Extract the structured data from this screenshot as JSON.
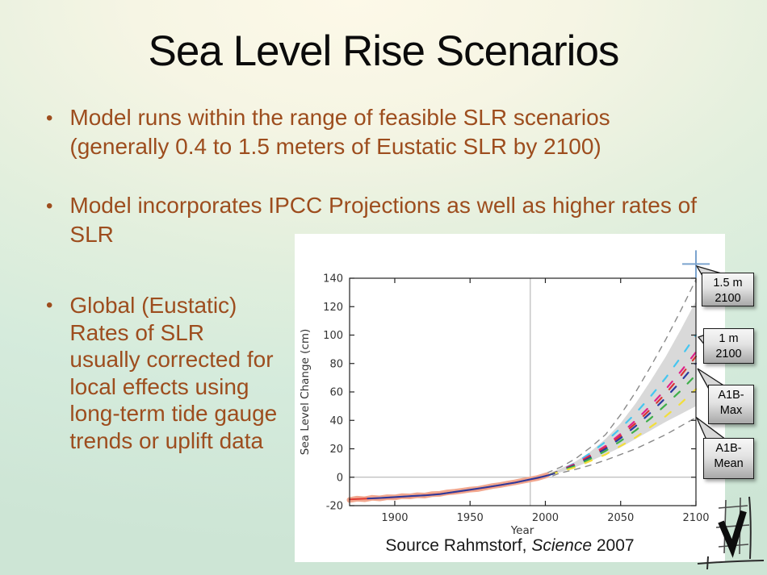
{
  "slide": {
    "title": "Sea Level Rise Scenarios",
    "bullet_char": "•",
    "bullets": [
      "Model runs within the range of feasible SLR scenarios (generally 0.4 to 1.5 meters of Eustatic SLR by 2100)",
      "Model incorporates IPCC Projections as well as higher rates of SLR",
      "Global (Eustatic) Rates of SLR usually corrected for local effects using long-term tide gauge trends or uplift data"
    ]
  },
  "figure": {
    "source": {
      "prefix": "Source Rahmstorf, ",
      "journal": "Science",
      "suffix": " 2007"
    },
    "callouts": [
      {
        "line1": "1.5 m",
        "line2": "2100"
      },
      {
        "line1": "1 m",
        "line2": "2100"
      },
      {
        "line1": "A1B-",
        "line2": "Max"
      },
      {
        "line1": "A1B-",
        "line2": "Mean"
      }
    ]
  },
  "colors": {
    "bullet_text": "#9D4D1E",
    "slide_bg_center": "#FCF8E6",
    "slide_bg_edge": "#CEE6D6",
    "callout_fill": "#D8D8D8",
    "marker_cross": "#7BA3CE"
  },
  "chart_data": {
    "type": "line",
    "title": "",
    "xlabel": "Year",
    "ylabel": "Sea Level Change (cm)",
    "xlim": [
      1870,
      2100
    ],
    "ylim": [
      -20,
      140
    ],
    "x_ticks": [
      1900,
      1950,
      2000,
      2050,
      2100
    ],
    "y_ticks": [
      -20,
      0,
      20,
      40,
      60,
      80,
      100,
      120,
      140
    ],
    "legend": "none",
    "grid": "reference lines only",
    "ref_lines": {
      "x": 1990,
      "y": 0,
      "color": "#ABABAB"
    },
    "series": [
      {
        "name": "projection-uncertainty-band",
        "kind": "area",
        "color": "#D9D9D9",
        "x": [
          2001,
          2010,
          2020,
          2030,
          2040,
          2050,
          2060,
          2070,
          2080,
          2090,
          2100
        ],
        "upper": [
          2,
          6,
          11,
          18,
          27,
          38,
          52,
          68,
          85,
          104,
          124
        ],
        "lower": [
          1,
          3.5,
          7,
          11.5,
          16,
          21,
          27,
          33,
          39,
          44.5,
          50
        ]
      },
      {
        "name": "outer-upper-bound",
        "kind": "line",
        "color": "#8A8A8A",
        "width": 1.4,
        "dash": "7 7",
        "x": [
          2001,
          2010,
          2020,
          2030,
          2040,
          2050,
          2060,
          2070,
          2080,
          2090,
          2100
        ],
        "values": [
          3,
          7,
          13,
          21,
          30,
          44,
          60,
          78,
          97,
          117.5,
          139
        ]
      },
      {
        "name": "outer-lower-bound",
        "kind": "line",
        "color": "#8A8A8A",
        "width": 1.4,
        "dash": "7 7",
        "x": [
          2005,
          2010,
          2020,
          2030,
          2040,
          2050,
          2060,
          2070,
          2080,
          2090,
          2100
        ],
        "values": [
          1,
          3,
          5.5,
          8.5,
          12,
          16,
          20,
          25,
          30,
          36,
          42
        ]
      },
      {
        "name": "scenario-1m-cyan",
        "kind": "line",
        "color": "#45C6F0",
        "width": 2.2,
        "dash": "9 14",
        "x": [
          2003,
          2010,
          2020,
          2030,
          2040,
          2050,
          2060,
          2070,
          2080,
          2090,
          2100
        ],
        "values": [
          1.8,
          5,
          10,
          17,
          25,
          34.5,
          45,
          57,
          70,
          84.5,
          100
        ]
      },
      {
        "name": "scenario-magenta",
        "kind": "line",
        "color": "#E0218A",
        "width": 2.2,
        "dash": "9 14",
        "x": [
          2003,
          2010,
          2020,
          2030,
          2040,
          2050,
          2060,
          2070,
          2080,
          2090,
          2100
        ],
        "values": [
          1.8,
          4.8,
          9.5,
          15.5,
          22,
          30.5,
          40,
          50.5,
          62,
          74.5,
          88
        ]
      },
      {
        "name": "scenario-red",
        "kind": "line",
        "color": "#D93434",
        "width": 2.2,
        "dash": "9 14",
        "x": [
          2003,
          2010,
          2020,
          2030,
          2040,
          2050,
          2060,
          2070,
          2080,
          2090,
          2100
        ],
        "values": [
          1.8,
          4.6,
          9,
          15,
          21,
          29,
          38,
          48,
          59,
          71.5,
          85
        ]
      },
      {
        "name": "scenario-navy",
        "kind": "line",
        "color": "#2B3A9E",
        "width": 2.2,
        "dash": "9 14",
        "x": [
          2003,
          2010,
          2020,
          2030,
          2040,
          2050,
          2060,
          2070,
          2080,
          2090,
          2100
        ],
        "values": [
          1.8,
          4.5,
          8.5,
          14,
          20,
          27.5,
          36,
          45.5,
          56,
          67.5,
          80
        ]
      },
      {
        "name": "scenario-green",
        "kind": "line",
        "color": "#3DAE49",
        "width": 2.2,
        "dash": "9 14",
        "x": [
          2003,
          2010,
          2020,
          2030,
          2040,
          2050,
          2060,
          2070,
          2080,
          2090,
          2100
        ],
        "values": [
          1.8,
          4.3,
          8,
          13,
          18.5,
          25.5,
          33,
          41.5,
          51,
          61,
          72
        ]
      },
      {
        "name": "scenario-yellow",
        "kind": "line",
        "color": "#F2DE3A",
        "width": 2.2,
        "dash": "9 14",
        "x": [
          2003,
          2010,
          2020,
          2030,
          2040,
          2050,
          2060,
          2070,
          2080,
          2090,
          2100
        ],
        "values": [
          1.8,
          4,
          7,
          11.5,
          16,
          22,
          28,
          35.5,
          43,
          52,
          62
        ]
      },
      {
        "name": "tide-gauge-observations",
        "kind": "line",
        "color": "#F1A78F",
        "width": 7,
        "x": [
          1870,
          1875,
          1880,
          1885,
          1890,
          1895,
          1900,
          1905,
          1910,
          1915,
          1920,
          1925,
          1930,
          1935,
          1940,
          1945,
          1950,
          1955,
          1960,
          1965,
          1970,
          1975,
          1980,
          1985,
          1990,
          1995,
          2001
        ],
        "values": [
          -16,
          -15.1,
          -15.5,
          -14.5,
          -14.9,
          -14.1,
          -14.2,
          -13.3,
          -13.5,
          -12.7,
          -12.9,
          -11.9,
          -11.7,
          -10.7,
          -10.2,
          -9.5,
          -8.7,
          -8.3,
          -7.3,
          -6.2,
          -5.5,
          -4.5,
          -3.6,
          -2.5,
          -1.5,
          -0.5,
          1.4
        ]
      },
      {
        "name": "smoothed-observed-red",
        "kind": "line",
        "color": "#E03C34",
        "width": 2,
        "x": [
          1870,
          1880,
          1890,
          1900,
          1910,
          1920,
          1930,
          1940,
          1950,
          1960,
          1970,
          1980,
          1990,
          1995,
          2001
        ],
        "values": [
          -15.6,
          -15.1,
          -14.7,
          -14.1,
          -13.4,
          -12.7,
          -11.8,
          -10.4,
          -8.9,
          -7.3,
          -5.6,
          -3.7,
          -1.6,
          -0.6,
          1.2
        ]
      },
      {
        "name": "model-fit-blue",
        "kind": "line",
        "color": "#2B3A9E",
        "width": 2,
        "x": [
          1882,
          1890,
          1900,
          1910,
          1920,
          1930,
          1940,
          1950,
          1960,
          1970,
          1980,
          1990,
          2000,
          2006
        ],
        "values": [
          -15.0,
          -14.6,
          -14.0,
          -13.3,
          -12.8,
          -11.9,
          -10.3,
          -8.8,
          -7.2,
          -5.5,
          -3.8,
          -1.5,
          0.8,
          2.6
        ]
      }
    ],
    "marker": {
      "name": "1.5m-2100-cross",
      "x": 2100,
      "y": 150,
      "color": "#7BA3CE"
    }
  }
}
